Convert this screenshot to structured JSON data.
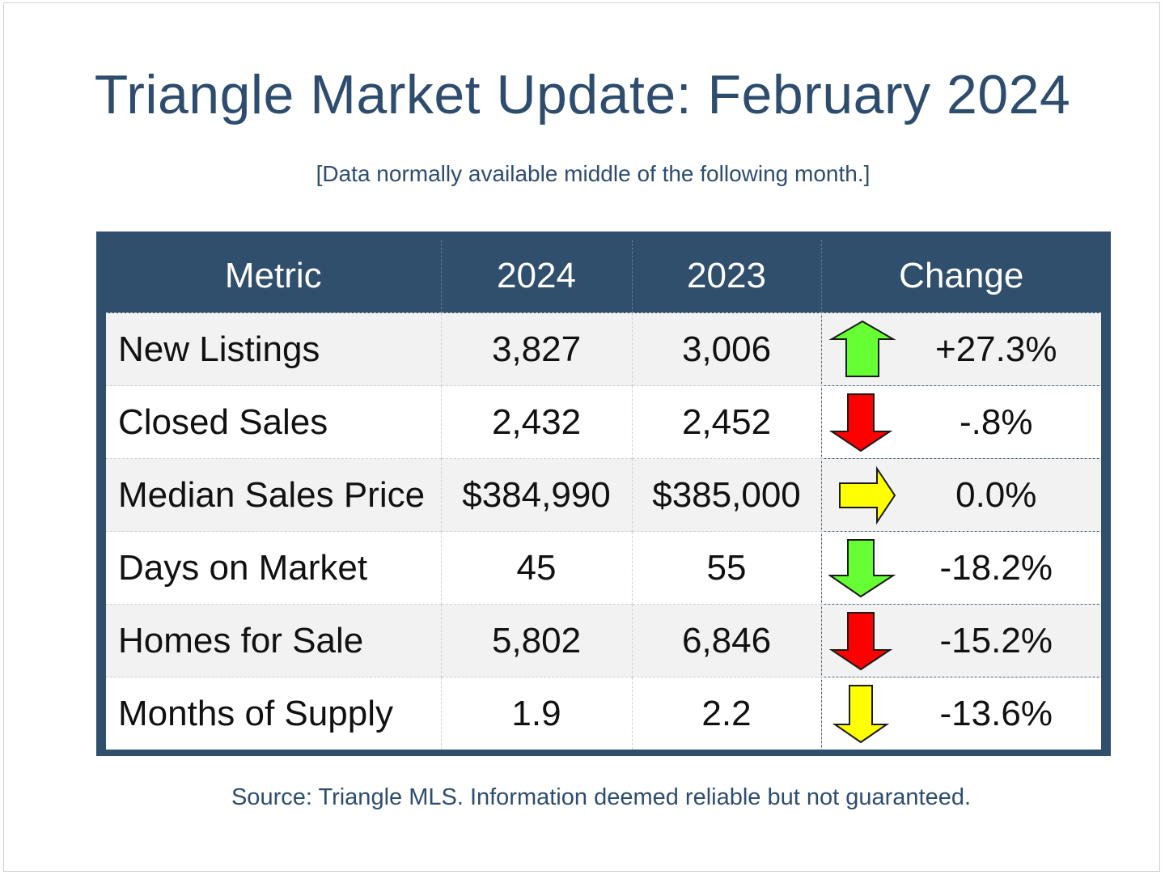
{
  "title": "Triangle Market Update: February 2024",
  "subtitle": "[Data normally available middle of the following month.]",
  "table": {
    "headers": [
      "Metric",
      "2024",
      "2023",
      "Change"
    ],
    "rows": [
      {
        "metric": "New Listings",
        "y2024": "3,827",
        "y2023": "3,006",
        "change": "+27.3%",
        "arrow": {
          "icon": "up-arrow-icon",
          "color": "#66ff33"
        }
      },
      {
        "metric": "Closed Sales",
        "y2024": "2,432",
        "y2023": "2,452",
        "change": "-.8%",
        "arrow": {
          "icon": "down-arrow-icon",
          "color": "#ff0000"
        }
      },
      {
        "metric": "Median Sales Price",
        "y2024": "$384,990",
        "y2023": "$385,000",
        "change": "0.0%",
        "arrow": {
          "icon": "right-arrow-icon",
          "color": "#ffff00"
        }
      },
      {
        "metric": "Days on Market",
        "y2024": "45",
        "y2023": "55",
        "change": "-18.2%",
        "arrow": {
          "icon": "down-arrow-icon",
          "color": "#66ff33"
        }
      },
      {
        "metric": "Homes for Sale",
        "y2024": "5,802",
        "y2023": "6,846",
        "change": "-15.2%",
        "arrow": {
          "icon": "down-arrow-icon",
          "color": "#ff0000"
        }
      },
      {
        "metric": "Months of Supply",
        "y2024": "1.9",
        "y2023": "2.2",
        "change": "-13.6%",
        "arrow": {
          "icon": "down-arrow-icon",
          "color": "#ffff00"
        }
      }
    ]
  },
  "source": "Source: Triangle MLS. Information deemed reliable but not guaranteed.",
  "colors": {
    "header_bg": "#2f4f6d",
    "title_text": "#2e4d6e"
  }
}
